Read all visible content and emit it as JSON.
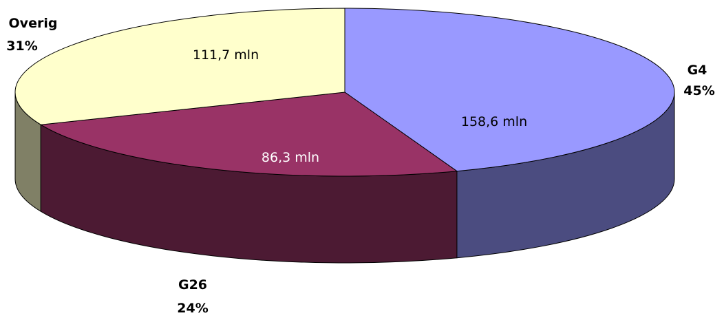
{
  "chart_data": {
    "type": "pie",
    "style": "3d-exploded-none",
    "slices": [
      {
        "label": "G4",
        "percent": "45%",
        "value": 158.6,
        "value_label": "158,6 mln",
        "top_color": "#9999ff",
        "side_color": "#4b4c80",
        "text_color": "#000000"
      },
      {
        "label": "G26",
        "percent": "24%",
        "value": 86.3,
        "value_label": "86,3 mln",
        "top_color": "#993366",
        "side_color": "#4c1a33",
        "text_color": "#ffffff"
      },
      {
        "label": "Overig",
        "percent": "31%",
        "value": 111.7,
        "value_label": "111,7 mln",
        "top_color": "#ffffcc",
        "side_color": "#808066",
        "text_color": "#000000"
      }
    ]
  }
}
